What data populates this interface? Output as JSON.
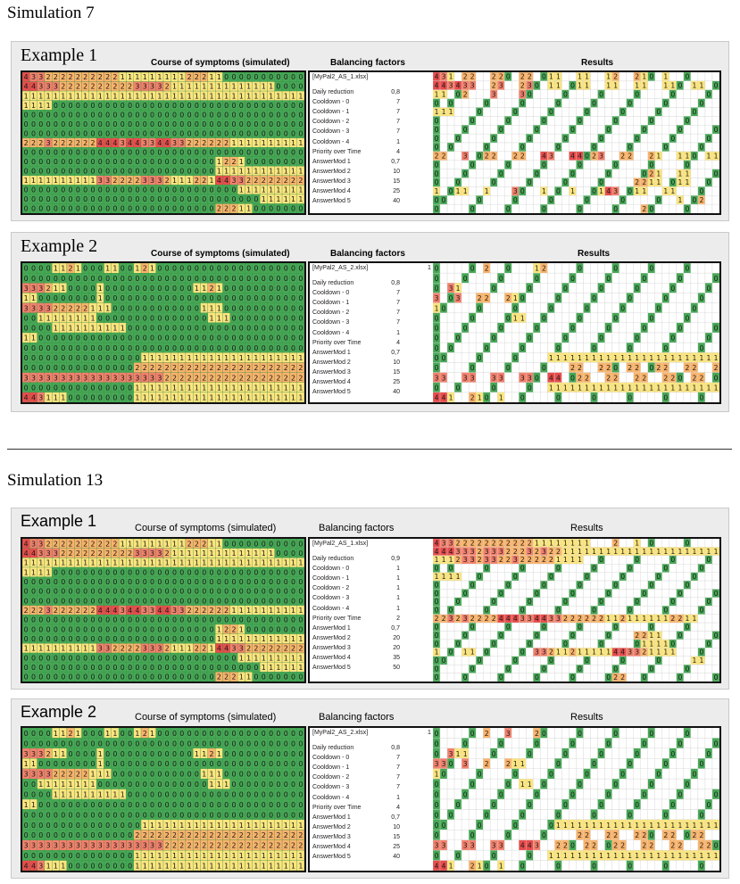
{
  "sections": [
    {
      "title": "Simulation 7",
      "examples": [
        {
          "title": "Example 1",
          "course_label": "Course of symptoms (simulated)",
          "balancing_label": "Balancing factors",
          "results_label": "Results",
          "file": "[MyPal2_AS_1.xlsx]",
          "file_extra": "",
          "values": [
            "0,8",
            "7",
            "7",
            "7",
            "7",
            "1",
            "4",
            "0,7",
            "10",
            "15",
            "25",
            "40"
          ]
        },
        {
          "title": "Example 2",
          "course_label": "Course of symptoms (simulated)",
          "balancing_label": "Balancing factors",
          "results_label": "Results",
          "file": "[MyPal2_AS_2.xlsx]",
          "file_extra": "1",
          "values": [
            "0,8",
            "7",
            "7",
            "7",
            "7",
            "1",
            "4",
            "0,7",
            "10",
            "15",
            "25",
            "40"
          ]
        }
      ]
    },
    {
      "title": "Simulation 13",
      "examples": [
        {
          "title": "Example 1",
          "course_label": "Course of symptoms (simulated)",
          "balancing_label": "Balancing factors",
          "results_label": "Results",
          "file": "[MyPal2_AS_1.xlsx]",
          "file_extra": "",
          "values": [
            "0,9",
            "1",
            "1",
            "1",
            "1",
            "1",
            "2",
            "0,7",
            "20",
            "20",
            "35",
            "50"
          ]
        },
        {
          "title": "Example 2",
          "course_label": "Course of symptoms (simulated)",
          "balancing_label": "Balancing factors",
          "results_label": "Results",
          "file": "[MyPal2_AS_2.xlsx]",
          "file_extra": "1",
          "values": [
            "0,8",
            "7",
            "7",
            "7",
            "7",
            "1",
            "4",
            "0,7",
            "10",
            "15",
            "25",
            "40"
          ]
        }
      ]
    }
  ],
  "factor_labels": [
    "Daily reduction",
    "Cooldown - 0",
    "Cooldown - 1",
    "Cooldown - 2",
    "Cooldown - 3",
    "Cooldown - 4",
    "Priority over Time",
    "AnswerMod 1",
    "AnswerMod 2",
    "AnswerMod 3",
    "AnswerMod 4",
    "AnswerMod 5"
  ],
  "colors": {
    "zero": "#46a755",
    "one": "#fbe57e",
    "two": "#f9b36b",
    "three": "#f2806c",
    "four": "#e84c4c",
    "panel_bg": "#ececec"
  },
  "heatmaps": {
    "ex1_symptoms": [
      "43322222222221111111112221100000000000",
      "44333222222222233332111111111111110000",
      "11111111111111111111111111111111111111",
      "11110000000000000000000000000000000000",
      "00000000000000000000000000000000000000",
      "00000000000000000000000000000000000000",
      "00000000000000000000000000000000000000",
      "22232222224443443344332222221111111111",
      "00000000000000000000000000000000000000",
      "00000000000000000000000000122100000000",
      "00000000000000000000000000111111111111",
      "11111111113322223332111221443322222222",
      "00000000000000000000000000000111111111",
      "00000000000000000000000000000000111111",
      "00000000000000000000000000222110000000"
    ],
    "ex2_symptoms": [
      "00001121000110012100000000000000000000",
      "00000000000000000000000000000000000000",
      "33321100001000000000000112100000000000",
      "11000000001000000000000000000000000000",
      "33332222211100000000000011100000000000",
      "00111111110000000000000001110000000000",
      "00001111111111000000000000000000000000",
      "11000000000000000000000000000000000000",
      "00000000000000000000000000000000000000",
      "00000000000000001111111111111111111111",
      "00000000000000022222222222222222222222",
      "33333333333333333332222222222222222222",
      "00000000000000011111111111111111111111",
      "44311100000000011111111111111111111111"
    ],
    "s7e1_results": [
      "4310220022002200110011001200210010000000",
      "4434330023002300110011001100110011001100",
      "1100200030003000000000000000000000000000",
      "0000000000000000000000000000000000000000",
      "1110000000000000000000000000000000000000",
      "0000000000000000000000000000000000000000",
      "0000000000000000000000000000000000000000",
      "0000000000000000000000000000000000000000",
      "0000000000000000000000000000000000000000",
      "2200300220022004300440230022002100110011",
      "0000000000000000000000000000000000000000",
      "0000000000000000000000000000002100110000",
      "0000000000000000000000000000221100110000",
      "1001100100030001000100014300110011000000",
      "0000000000000000000000000000000000100200",
      "0000000000000000000000000000020000000000"
    ],
    "s7e2_results": [
      "0000000200000012000000000000000000000000",
      "0000000000000000000000000000000000000000",
      "0031000000000000000000000000000000000000",
      "3003002200210000000000000000000000000000",
      "1000000000000000000000000000000000000000",
      "0000000000011000000000000000000000000000",
      "0000000000000000000000000000000000000000",
      "0000000000000000000000000000000000000000",
      "0000000000000000000000000000000000000000",
      "0000000000000000111111111111111111111111",
      "0000000000000000000220022002200220022002",
      "3300330033003300440022002200220022002200",
      "0000000000000000111111111111111111111111",
      "4410021001000000000000000000000000000000"
    ],
    "s13e1_results": [
      "4332222222222211111111000200100000000000",
      "4443332333222323221111111111111111111111",
      "1112332332232222211110000000000000000000",
      "0000000000000000000000000000000000000000",
      "1111000000000000000000000000000000000000",
      "0000000000000000000000000000000000000000",
      "0000000000000000000000000000000000000000",
      "0000000000000000000000000000000000000000",
      "0000000000000000000000000000000000000000",
      "2232322224443344332222221121111112211000",
      "0000000000000000000000000000000000000000",
      "0000000000000000000000000000221100000000",
      "0000000000000000000000000000011110000000",
      "1000110000000033211211111443321111000000",
      "0000000000000000000000000000000000001100",
      "0000000000000000000000000000000000000000",
      "0000000000000000000000000220000000000000"
    ],
    "s13e2_results": [
      "0000000200300020000000000000000000000000",
      "0000000000000000000000000000000000000000",
      "0031100000000000000000000000000000000000",
      "3300300200211000000000000000000000000000",
      "1000000000000000000000000000000000000000",
      "0000000000001100000000000000000000000000",
      "0000000000000000000000000000000000000000",
      "0000000000000000000000000000000000000000",
      "0000000000000000000000000000000000000000",
      "0000000000000000011111111111111111111111",
      "0000000000000000000022002200220022002200",
      "3300330033004430022002200220022002200220",
      "0000000000000000111111111111111111111111",
      "4410021001000000000000000000000000000000"
    ]
  }
}
